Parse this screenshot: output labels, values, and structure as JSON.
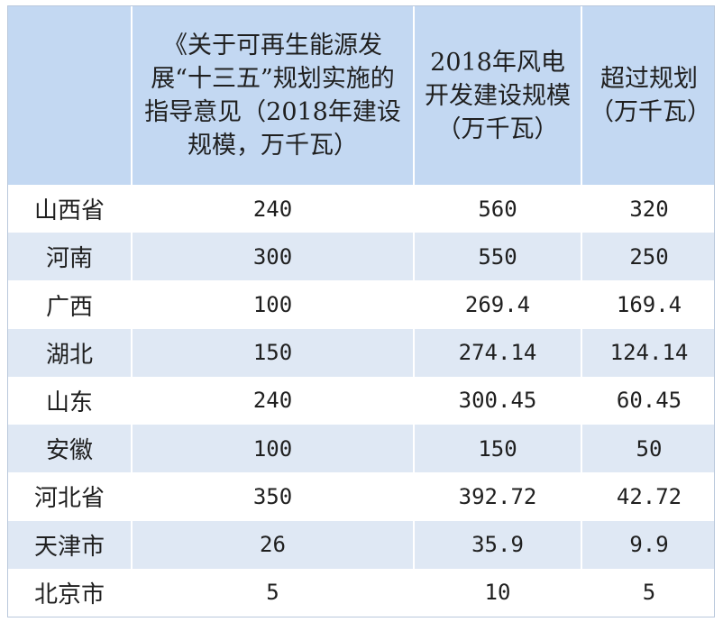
{
  "chart_data": {
    "type": "table",
    "columns": [
      "",
      "《关于可再生能源发展“十三五”规划实施的指导意见（2018年建设规模，万千瓦）",
      "2018年风电开发建设规模（万千瓦）",
      "超过规划（万千瓦）"
    ],
    "rows": [
      {
        "province": "山西省",
        "plan": "240",
        "actual": "560",
        "excess": "320"
      },
      {
        "province": "河南",
        "plan": "300",
        "actual": "550",
        "excess": "250"
      },
      {
        "province": "广西",
        "plan": "100",
        "actual": "269.4",
        "excess": "169.4"
      },
      {
        "province": "湖北",
        "plan": "150",
        "actual": "274.14",
        "excess": "124.14"
      },
      {
        "province": "山东",
        "plan": "240",
        "actual": "300.45",
        "excess": "60.45"
      },
      {
        "province": "安徽",
        "plan": "100",
        "actual": "150",
        "excess": "50"
      },
      {
        "province": "河北省",
        "plan": "350",
        "actual": "392.72",
        "excess": "42.72"
      },
      {
        "province": "天津市",
        "plan": "26",
        "actual": "35.9",
        "excess": "9.9"
      },
      {
        "province": "北京市",
        "plan": "5",
        "actual": "10",
        "excess": "5"
      }
    ]
  },
  "colors": {
    "header_bg": "#c3d8f2",
    "row_alt_bg": "#dfe8f4",
    "row_bg": "#ffffff",
    "text": "#1f1f1f"
  }
}
